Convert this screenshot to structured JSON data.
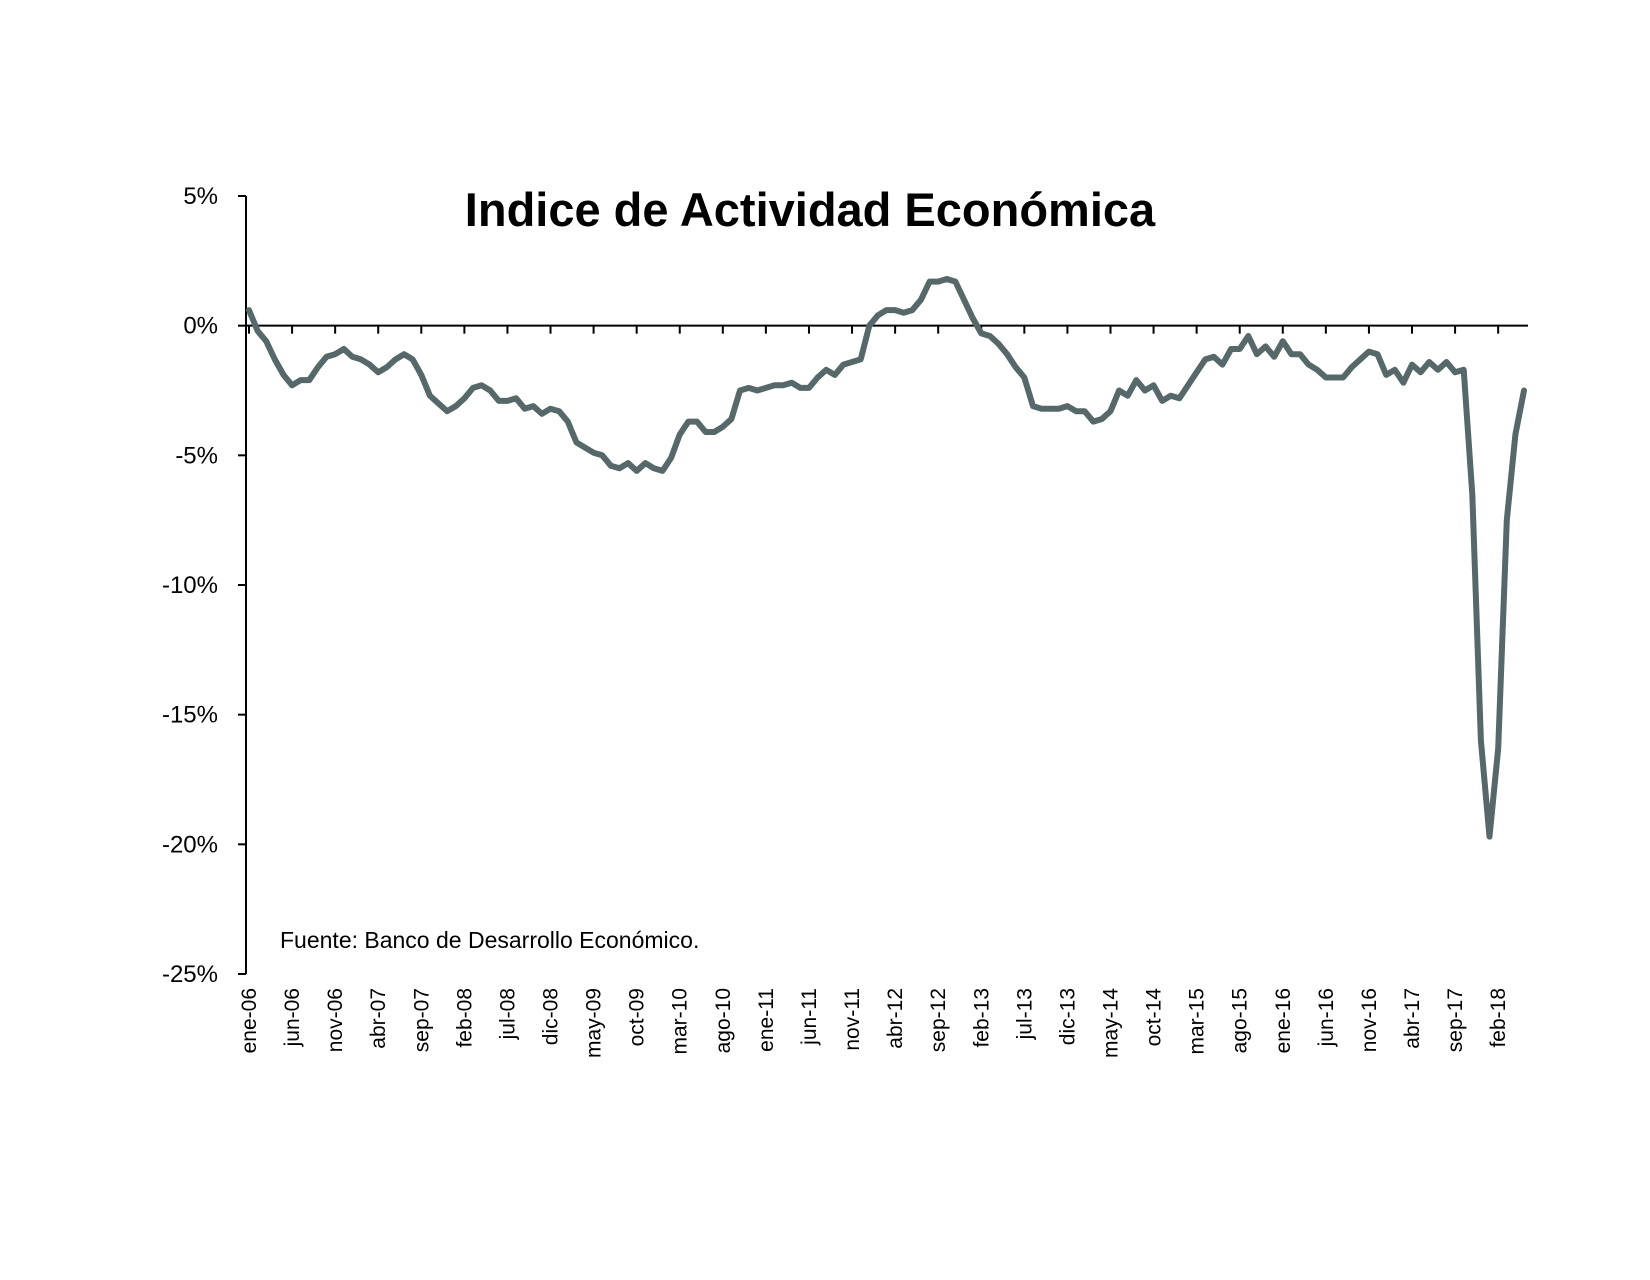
{
  "chart_data": {
    "type": "line",
    "title": "Indice de Actividad Económica",
    "source": "Fuente: Banco de Desarrollo Económico.",
    "ylim": [
      -25,
      5
    ],
    "y_tick_values": [
      5,
      0,
      -5,
      -10,
      -15,
      -20,
      -25
    ],
    "y_tick_labels": [
      "5%",
      "0%",
      "-5%",
      "-10%",
      "-15%",
      "-20%",
      "-25%"
    ],
    "x_tick_labels": [
      "ene-06",
      "jun-06",
      "nov-06",
      "abr-07",
      "sep-07",
      "feb-08",
      "jul-08",
      "dic-08",
      "may-09",
      "oct-09",
      "mar-10",
      "ago-10",
      "ene-11",
      "jun-11",
      "nov-11",
      "abr-12",
      "sep-12",
      "feb-13",
      "jul-13",
      "dic-13",
      "may-14",
      "oct-14",
      "mar-15",
      "ago-15",
      "ene-16",
      "jun-16",
      "nov-16",
      "abr-17",
      "sep-17",
      "feb-18"
    ],
    "x_start": "ene-06",
    "x_end": "abr-18",
    "grid": false,
    "legend": "none",
    "line_color": "#56686a",
    "series": [
      {
        "values": [
          0.6,
          -0.2,
          -0.6,
          -1.3,
          -1.9,
          -2.3,
          -2.1,
          -2.1,
          -1.6,
          -1.2,
          -1.1,
          -0.9,
          -1.2,
          -1.3,
          -1.5,
          -1.8,
          -1.6,
          -1.3,
          -1.1,
          -1.3,
          -1.9,
          -2.7,
          -3.0,
          -3.3,
          -3.1,
          -2.8,
          -2.4,
          -2.3,
          -2.5,
          -2.9,
          -2.9,
          -2.8,
          -3.2,
          -3.1,
          -3.4,
          -3.2,
          -3.3,
          -3.7,
          -4.5,
          -4.7,
          -4.9,
          -5.0,
          -5.4,
          -5.5,
          -5.3,
          -5.6,
          -5.3,
          -5.5,
          -5.6,
          -5.1,
          -4.2,
          -3.7,
          -3.7,
          -4.1,
          -4.1,
          -3.9,
          -3.6,
          -2.5,
          -2.4,
          -2.5,
          -2.4,
          -2.3,
          -2.3,
          -2.2,
          -2.4,
          -2.4,
          -2.0,
          -1.7,
          -1.9,
          -1.5,
          -1.4,
          -1.3,
          0.0,
          0.4,
          0.6,
          0.6,
          0.5,
          0.6,
          1.0,
          1.7,
          1.7,
          1.8,
          1.7,
          1.0,
          0.3,
          -0.3,
          -0.4,
          -0.7,
          -1.1,
          -1.6,
          -2.0,
          -3.1,
          -3.2,
          -3.2,
          -3.2,
          -3.1,
          -3.3,
          -3.3,
          -3.7,
          -3.6,
          -3.3,
          -2.5,
          -2.7,
          -2.1,
          -2.5,
          -2.3,
          -2.9,
          -2.7,
          -2.8,
          -2.3,
          -1.8,
          -1.3,
          -1.2,
          -1.5,
          -0.9,
          -0.9,
          -0.4,
          -1.1,
          -0.8,
          -1.2,
          -0.6,
          -1.1,
          -1.1,
          -1.5,
          -1.7,
          -2.0,
          -2.0,
          -2.0,
          -1.6,
          -1.3,
          -1.0,
          -1.1,
          -1.9,
          -1.7,
          -2.2,
          -1.5,
          -1.8,
          -1.4,
          -1.7,
          -1.4,
          -1.8,
          -1.7,
          -6.5,
          -16.0,
          -19.7,
          -16.3,
          -7.5,
          -4.2,
          -2.5
        ]
      }
    ]
  }
}
